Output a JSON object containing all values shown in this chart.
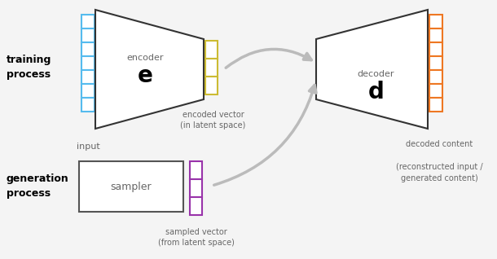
{
  "bg_color": "#f4f4f4",
  "label_color": "#666666",
  "input_rect_color": "#55bbee",
  "encoded_rect_color": "#ccbb33",
  "sampled_rect_color": "#9933aa",
  "output_rect_color": "#ee7722",
  "sampler_box_color": "#555555",
  "trapezoid_color": "#333333",
  "arrow_color": "#bbbbbb",
  "training_label": "training\nprocess",
  "generation_label": "generation\nprocess",
  "encoder_label": "encoder",
  "encoder_letter": "e",
  "decoder_label": "decoder",
  "decoder_letter": "d",
  "sampler_label": "sampler",
  "input_label": "input",
  "encoded_label": "encoded vector\n(in latent space)",
  "sampled_label": "sampled vector\n(from latent space)",
  "decoded_label": "decoded content\n\n(reconstructed input /\ngenerated content)"
}
